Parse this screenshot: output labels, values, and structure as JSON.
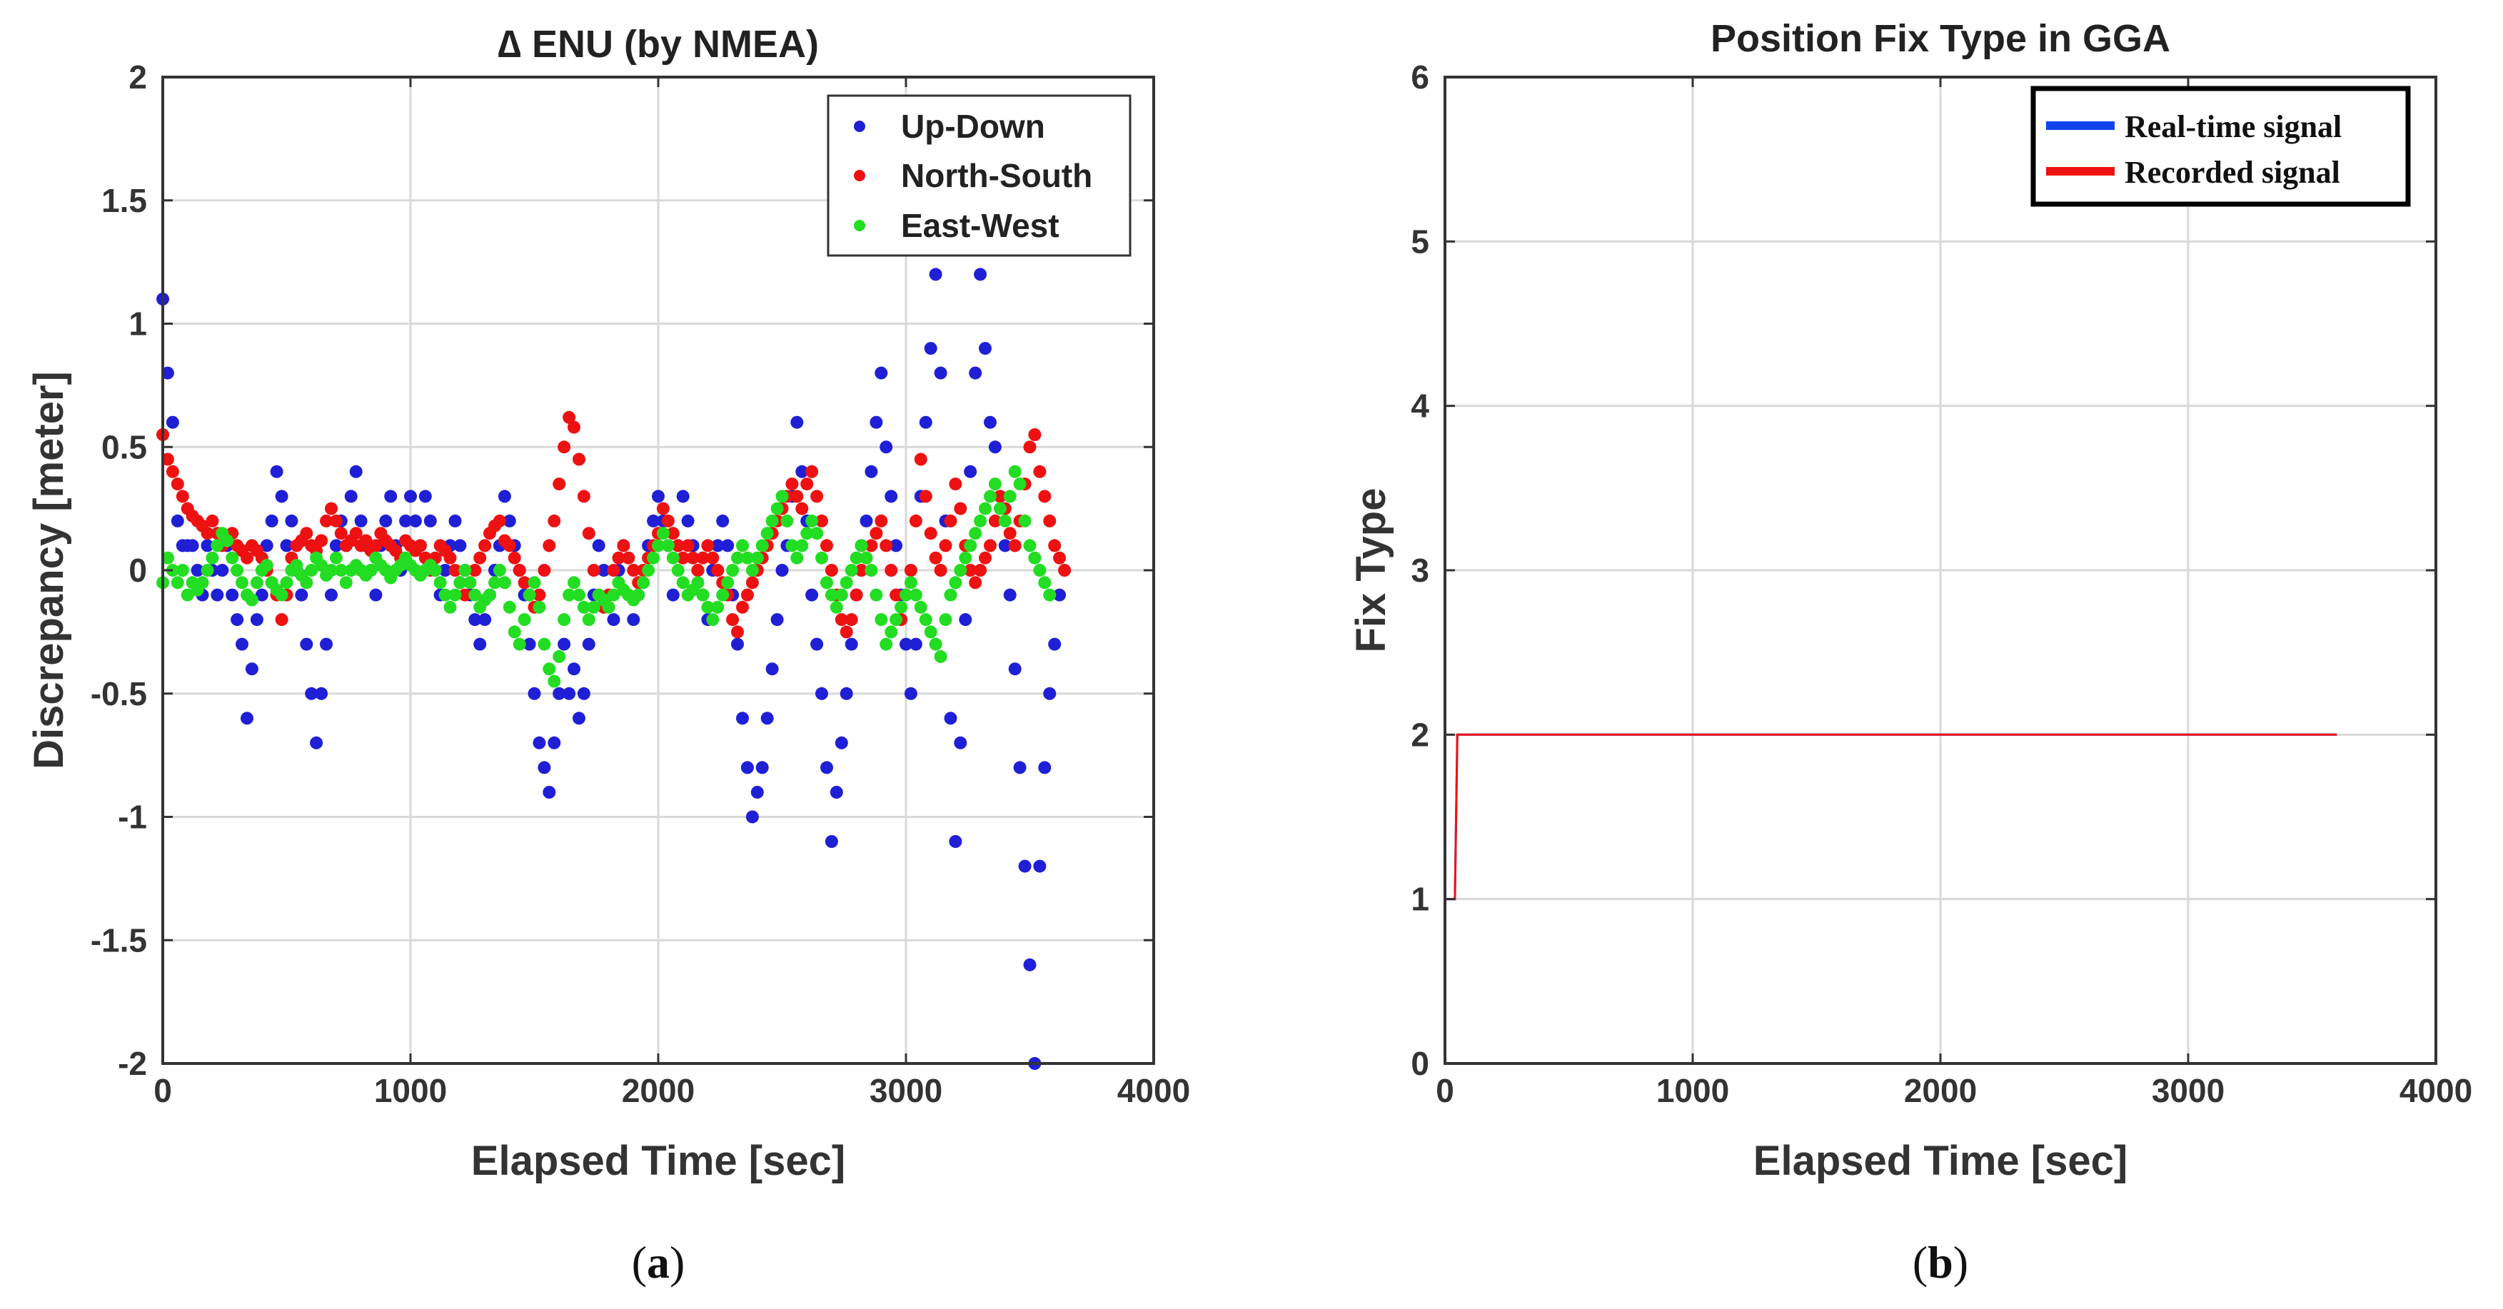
{
  "chart_data": [
    {
      "type": "scatter",
      "panel": "a",
      "caption": "a",
      "title": "∆ ENU (by NMEA)",
      "xlabel": "Elapsed Time [sec]",
      "ylabel": "Discrepancy [meter]",
      "xlim": [
        0,
        4000
      ],
      "ylim": [
        -2,
        2
      ],
      "xticks": [
        0,
        1000,
        2000,
        3000,
        4000
      ],
      "yticks": [
        -2,
        -1.5,
        -1,
        -0.5,
        0,
        0.5,
        1,
        1.5,
        2
      ],
      "xtick_labels": [
        "0",
        "1000",
        "2000",
        "3000",
        "4000"
      ],
      "ytick_labels": [
        "-2",
        "-1.5",
        "-1",
        "-0.5",
        "0",
        "0.5",
        "1",
        "1.5",
        "2"
      ],
      "grid": true,
      "legend_position": "top-right",
      "series": [
        {
          "name": "Up-Down",
          "color": "#1f1fd6",
          "sample_every_sec": 20,
          "values": [
            1.1,
            0.8,
            0.6,
            0.2,
            0.1,
            0.1,
            0.1,
            0,
            -0.1,
            0.1,
            0,
            -0.1,
            0,
            0.1,
            -0.1,
            -0.2,
            -0.3,
            -0.6,
            -0.4,
            -0.2,
            -0.1,
            0.1,
            0.2,
            0.4,
            0.3,
            0.1,
            0.2,
            0,
            -0.1,
            -0.3,
            -0.5,
            -0.7,
            -0.5,
            -0.3,
            -0.1,
            0.1,
            0.2,
            0.1,
            0.3,
            0.4,
            0.2,
            0.1,
            0,
            -0.1,
            0.1,
            0.2,
            0.3,
            0.1,
            0,
            0.2,
            0.3,
            0.2,
            0.1,
            0.3,
            0.2,
            0,
            -0.1,
            0,
            0.1,
            0.2,
            0.1,
            0,
            -0.1,
            -0.2,
            -0.3,
            -0.2,
            -0.1,
            0,
            0.1,
            0.3,
            0.2,
            0.1,
            0,
            -0.1,
            -0.3,
            -0.5,
            -0.7,
            -0.8,
            -0.9,
            -0.7,
            -0.5,
            -0.3,
            -0.5,
            -0.4,
            -0.6,
            -0.5,
            -0.3,
            -0.1,
            0.1,
            0,
            -0.1,
            -0.2,
            0,
            0.1,
            -0.1,
            -0.2,
            -0.1,
            0,
            0.1,
            0.2,
            0.3,
            0.2,
            0.1,
            -0.1,
            0.1,
            0.3,
            0.2,
            0.1,
            0,
            -0.1,
            -0.2,
            0,
            0.1,
            0.2,
            0.1,
            -0.1,
            -0.3,
            -0.6,
            -0.8,
            -1.0,
            -0.9,
            -0.8,
            -0.6,
            -0.4,
            -0.2,
            0,
            0.1,
            0.3,
            0.6,
            0.4,
            0.2,
            -0.1,
            -0.3,
            -0.5,
            -0.8,
            -1.1,
            -0.9,
            -0.7,
            -0.5,
            -0.3,
            -0.1,
            0.1,
            0.2,
            0.4,
            0.6,
            0.8,
            0.5,
            0.3,
            0.1,
            -0.1,
            -0.3,
            -0.5,
            -0.3,
            0.3,
            0.6,
            0.9,
            1.2,
            0.8,
            0.2,
            -0.6,
            -1.1,
            -0.7,
            -0.2,
            0.4,
            0.8,
            1.2,
            0.9,
            0.6,
            0.5,
            0.3,
            0.1,
            -0.1,
            -0.4,
            -0.8,
            -1.2,
            -1.6,
            -2.0,
            -1.2,
            -0.8,
            -0.5,
            -0.3,
            -0.1
          ]
        },
        {
          "name": "North-South",
          "color": "#ee1111",
          "sample_every_sec": 20,
          "values": [
            0.55,
            0.45,
            0.4,
            0.35,
            0.3,
            0.25,
            0.22,
            0.2,
            0.18,
            0.15,
            0.2,
            0.15,
            0.1,
            0.12,
            0.15,
            0.1,
            0.08,
            0.05,
            0.1,
            0.08,
            0.05,
            0,
            -0.05,
            -0.1,
            -0.2,
            -0.1,
            0.05,
            0.1,
            0.12,
            0.15,
            0.1,
            0.08,
            0.12,
            0.2,
            0.25,
            0.2,
            0.15,
            0.1,
            0.12,
            0.15,
            0.1,
            0.12,
            0.08,
            0.1,
            0.15,
            0.12,
            0.1,
            0.08,
            0.05,
            0.12,
            0.1,
            0.08,
            0.1,
            0.05,
            0,
            0.05,
            0.1,
            0.08,
            0.05,
            0,
            -0.05,
            -0.1,
            -0.05,
            0,
            0.05,
            0.1,
            0.15,
            0.18,
            0.2,
            0.12,
            0.1,
            0.05,
            0,
            -0.05,
            -0.1,
            -0.15,
            -0.1,
            0,
            0.1,
            0.2,
            0.35,
            0.5,
            0.62,
            0.58,
            0.45,
            0.3,
            0.15,
            0,
            -0.1,
            -0.15,
            -0.1,
            0,
            0.05,
            0.1,
            0.05,
            0,
            -0.05,
            0,
            0.05,
            0.1,
            0.15,
            0.25,
            0.2,
            0.15,
            0.1,
            0.05,
            0.1,
            0.05,
            0,
            0.05,
            0.1,
            0.05,
            0,
            -0.05,
            -0.1,
            -0.2,
            -0.25,
            -0.15,
            -0.1,
            -0.05,
            0,
            0.05,
            0.1,
            0.15,
            0.2,
            0.25,
            0.3,
            0.35,
            0.3,
            0.25,
            0.35,
            0.4,
            0.3,
            0.2,
            0.1,
            0,
            -0.1,
            -0.2,
            -0.25,
            -0.2,
            -0.1,
            0,
            0.05,
            0.1,
            0.15,
            0.2,
            0.1,
            0,
            -0.1,
            -0.2,
            -0.1,
            0,
            0.2,
            0.45,
            0.3,
            0.15,
            0.05,
            0,
            0.1,
            0.2,
            0.35,
            0.25,
            0.1,
            0,
            -0.05,
            0,
            0.05,
            0.1,
            0.2,
            0.3,
            0.25,
            0.15,
            0.1,
            0.2,
            0.35,
            0.5,
            0.55,
            0.4,
            0.3,
            0.2,
            0.1,
            0.05,
            0
          ]
        },
        {
          "name": "East-West",
          "color": "#22dd22",
          "sample_every_sec": 20,
          "values": [
            -0.05,
            0.05,
            0,
            -0.05,
            0,
            -0.1,
            -0.05,
            -0.08,
            -0.05,
            0,
            0.05,
            0.1,
            0.15,
            0.12,
            0.05,
            0,
            -0.05,
            -0.1,
            -0.12,
            -0.05,
            0,
            0.02,
            -0.05,
            -0.08,
            -0.1,
            -0.05,
            0,
            0.02,
            -0.02,
            -0.05,
            0,
            0.05,
            0.02,
            -0.02,
            0,
            0.05,
            0,
            -0.05,
            0,
            0.02,
            0,
            -0.02,
            0,
            0.05,
            0.02,
            0,
            -0.03,
            0,
            0.02,
            0.05,
            0.02,
            0,
            -0.02,
            0,
            0.02,
            0,
            -0.05,
            -0.1,
            -0.15,
            -0.1,
            -0.05,
            0,
            -0.05,
            -0.1,
            -0.15,
            -0.12,
            -0.1,
            -0.05,
            0,
            -0.05,
            -0.15,
            -0.25,
            -0.3,
            -0.2,
            -0.1,
            -0.05,
            -0.15,
            -0.3,
            -0.4,
            -0.45,
            -0.35,
            -0.2,
            -0.1,
            -0.05,
            -0.1,
            -0.15,
            -0.2,
            -0.15,
            -0.1,
            -0.12,
            -0.15,
            -0.1,
            -0.05,
            -0.08,
            -0.1,
            -0.12,
            -0.1,
            -0.05,
            0,
            0.05,
            0.1,
            0.15,
            0.1,
            0.05,
            0,
            -0.05,
            -0.1,
            -0.08,
            -0.05,
            -0.1,
            -0.15,
            -0.2,
            -0.15,
            -0.1,
            -0.05,
            0,
            0.05,
            0.1,
            0.05,
            0,
            0.05,
            0.1,
            0.15,
            0.2,
            0.25,
            0.3,
            0.2,
            0.1,
            0.05,
            0.1,
            0.15,
            0.2,
            0.15,
            0.05,
            -0.05,
            -0.1,
            -0.15,
            -0.1,
            -0.05,
            0,
            0.05,
            0.1,
            0.05,
            0,
            -0.1,
            -0.2,
            -0.3,
            -0.25,
            -0.2,
            -0.15,
            -0.1,
            -0.05,
            -0.1,
            -0.15,
            -0.2,
            -0.25,
            -0.3,
            -0.35,
            -0.2,
            -0.1,
            -0.05,
            0,
            0.05,
            0.1,
            0.15,
            0.2,
            0.25,
            0.3,
            0.35,
            0.25,
            0.2,
            0.3,
            0.4,
            0.35,
            0.2,
            0.1,
            0.05,
            0,
            -0.05,
            -0.1
          ]
        }
      ]
    },
    {
      "type": "line",
      "panel": "b",
      "caption": "b",
      "title": "Position Fix Type in GGA",
      "xlabel": "Elapsed Time [sec]",
      "ylabel": "Fix Type",
      "xlim": [
        0,
        4000
      ],
      "ylim": [
        0,
        6
      ],
      "xticks": [
        0,
        1000,
        2000,
        3000,
        4000
      ],
      "yticks": [
        0,
        1,
        2,
        3,
        4,
        5,
        6
      ],
      "xtick_labels": [
        "0",
        "1000",
        "2000",
        "3000",
        "4000"
      ],
      "ytick_labels": [
        "0",
        "1",
        "2",
        "3",
        "4",
        "5",
        "6"
      ],
      "grid": true,
      "legend_position": "top-right",
      "series": [
        {
          "name": "Real-time signal",
          "color": "#1144ee",
          "x": [
            0,
            40,
            50,
            3600
          ],
          "y": [
            1,
            1,
            2,
            2
          ]
        },
        {
          "name": "Recorded signal",
          "color": "#ee1111",
          "x": [
            0,
            40,
            50,
            3600
          ],
          "y": [
            1,
            1,
            2,
            2
          ]
        }
      ]
    }
  ]
}
